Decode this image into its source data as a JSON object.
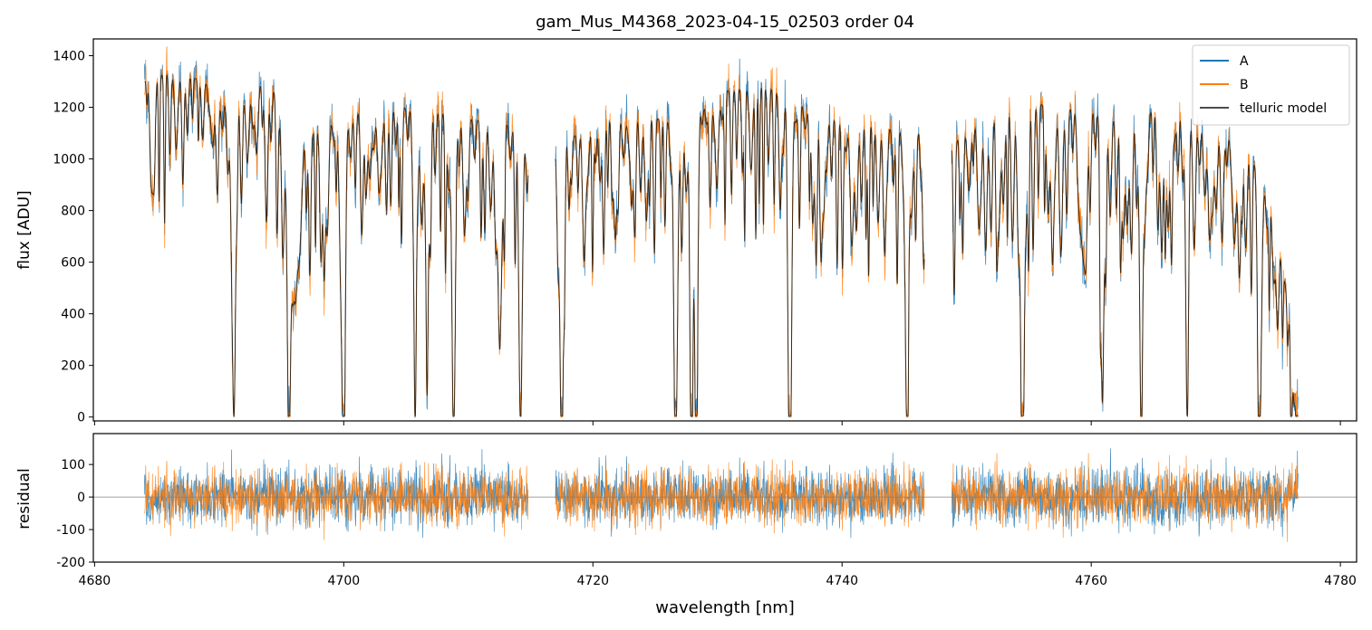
{
  "title": "gam_Mus_M4368_2023-04-15_02503  order 04",
  "xlabel": "wavelength [nm]",
  "colors": {
    "A": "#1f77b4",
    "B": "#ff7f0e",
    "model": "#000000",
    "zero_line": "#808080"
  },
  "chart_data": [
    {
      "type": "line",
      "panel": "top",
      "ylabel": "flux [ADU]",
      "xlim": [
        4679.9,
        4781.3
      ],
      "ylim": [
        -15,
        1465
      ],
      "x_ticks": [
        4680,
        4700,
        4720,
        4740,
        4760,
        4780
      ],
      "y_ticks": [
        0,
        200,
        400,
        600,
        800,
        1000,
        1200,
        1400
      ],
      "legend": {
        "position": "top-right",
        "entries": [
          "A",
          "B",
          "telluric model"
        ]
      },
      "segments": [
        [
          4684.0,
          4714.8
        ],
        [
          4717.0,
          4746.6
        ],
        [
          4748.8,
          4776.6
        ]
      ],
      "continuum_points": [
        [
          4684.0,
          1300
        ],
        [
          4686.0,
          1335
        ],
        [
          4690.0,
          1290
        ],
        [
          4691.2,
          1240
        ],
        [
          4693.5,
          1300
        ],
        [
          4694.5,
          1260
        ],
        [
          4695.4,
          960
        ],
        [
          4697.5,
          1100
        ],
        [
          4700.0,
          1180
        ],
        [
          4705.0,
          1200
        ],
        [
          4710.0,
          1160
        ],
        [
          4714.8,
          1120
        ],
        [
          4717.0,
          1050
        ],
        [
          4722.0,
          1180
        ],
        [
          4726.0,
          1150
        ],
        [
          4730.0,
          1260
        ],
        [
          4734.0,
          1280
        ],
        [
          4736.5,
          1230
        ],
        [
          4740.0,
          1140
        ],
        [
          4746.5,
          1100
        ],
        [
          4748.8,
          1050
        ],
        [
          4752.0,
          1200
        ],
        [
          4756.0,
          1210
        ],
        [
          4762.0,
          1170
        ],
        [
          4768.0,
          1200
        ],
        [
          4772.0,
          1090
        ],
        [
          4774.5,
          840
        ],
        [
          4776.6,
          200
        ]
      ],
      "absorption_lines": [
        {
          "x": 4691.2,
          "depth": 1200
        },
        {
          "x": 4695.6,
          "depth": 720
        },
        {
          "x": 4700.0,
          "depth": 1150
        },
        {
          "x": 4705.7,
          "depth": 760
        },
        {
          "x": 4706.7,
          "depth": 820
        },
        {
          "x": 4708.8,
          "depth": 1140
        },
        {
          "x": 4712.5,
          "depth": 800
        },
        {
          "x": 4714.2,
          "depth": 720
        },
        {
          "x": 4717.5,
          "depth": 1030
        },
        {
          "x": 4726.6,
          "depth": 1120
        },
        {
          "x": 4727.9,
          "depth": 1130
        },
        {
          "x": 4728.3,
          "depth": 1140
        },
        {
          "x": 4735.8,
          "depth": 1220
        },
        {
          "x": 4745.2,
          "depth": 1070
        },
        {
          "x": 4754.5,
          "depth": 1180
        },
        {
          "x": 4760.9,
          "depth": 1120
        },
        {
          "x": 4764.0,
          "depth": 1130
        },
        {
          "x": 4767.7,
          "depth": 1150
        },
        {
          "x": 4773.5,
          "depth": 1100
        }
      ],
      "series": [
        {
          "name": "A",
          "noise_rms": 70
        },
        {
          "name": "B",
          "noise_rms": 65
        },
        {
          "name": "telluric model",
          "noise_rms": 0
        }
      ]
    },
    {
      "type": "line",
      "panel": "bottom",
      "ylabel": "residual",
      "xlim": [
        4679.9,
        4781.3
      ],
      "ylim": [
        -200,
        195
      ],
      "x_ticks": [
        4680,
        4700,
        4720,
        4740,
        4760,
        4780
      ],
      "y_ticks": [
        -200,
        -100,
        0,
        100
      ],
      "zero_line": 0,
      "segments": [
        [
          4684.0,
          4714.8
        ],
        [
          4717.0,
          4746.6
        ],
        [
          4748.8,
          4776.6
        ]
      ],
      "series": [
        {
          "name": "A",
          "residual_rms": 60
        },
        {
          "name": "B",
          "residual_rms": 55
        }
      ]
    }
  ]
}
